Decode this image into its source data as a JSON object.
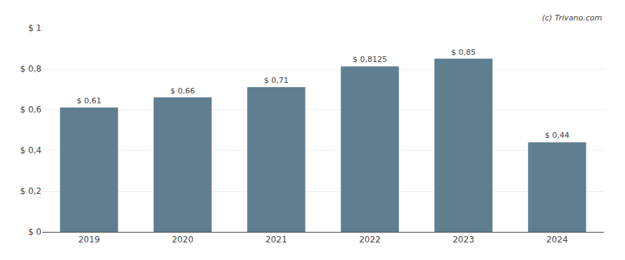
{
  "chart_data": {
    "type": "bar",
    "categories": [
      "2019",
      "2020",
      "2021",
      "2022",
      "2023",
      "2024"
    ],
    "values": [
      0.61,
      0.66,
      0.71,
      0.8125,
      0.85,
      0.44
    ],
    "value_labels": [
      "$ 0,61",
      "$ 0,66",
      "$ 0,71",
      "$ 0,8125",
      "$ 0,85",
      "$ 0,44"
    ],
    "data_labels": true,
    "color": "#5f7f90",
    "ylim": [
      0,
      1.0
    ],
    "yticks": [
      {
        "value": 0,
        "label": "$ 0"
      },
      {
        "value": 0.2,
        "label": "$ 0,2"
      },
      {
        "value": 0.4,
        "label": "$ 0,4"
      },
      {
        "value": 0.6,
        "label": "$ 0,6"
      },
      {
        "value": 0.8,
        "label": "$ 0,8"
      },
      {
        "value": 1.0,
        "label": "$ 1"
      }
    ],
    "grid": true,
    "annotations": [
      "(c) Trivano.com"
    ]
  }
}
